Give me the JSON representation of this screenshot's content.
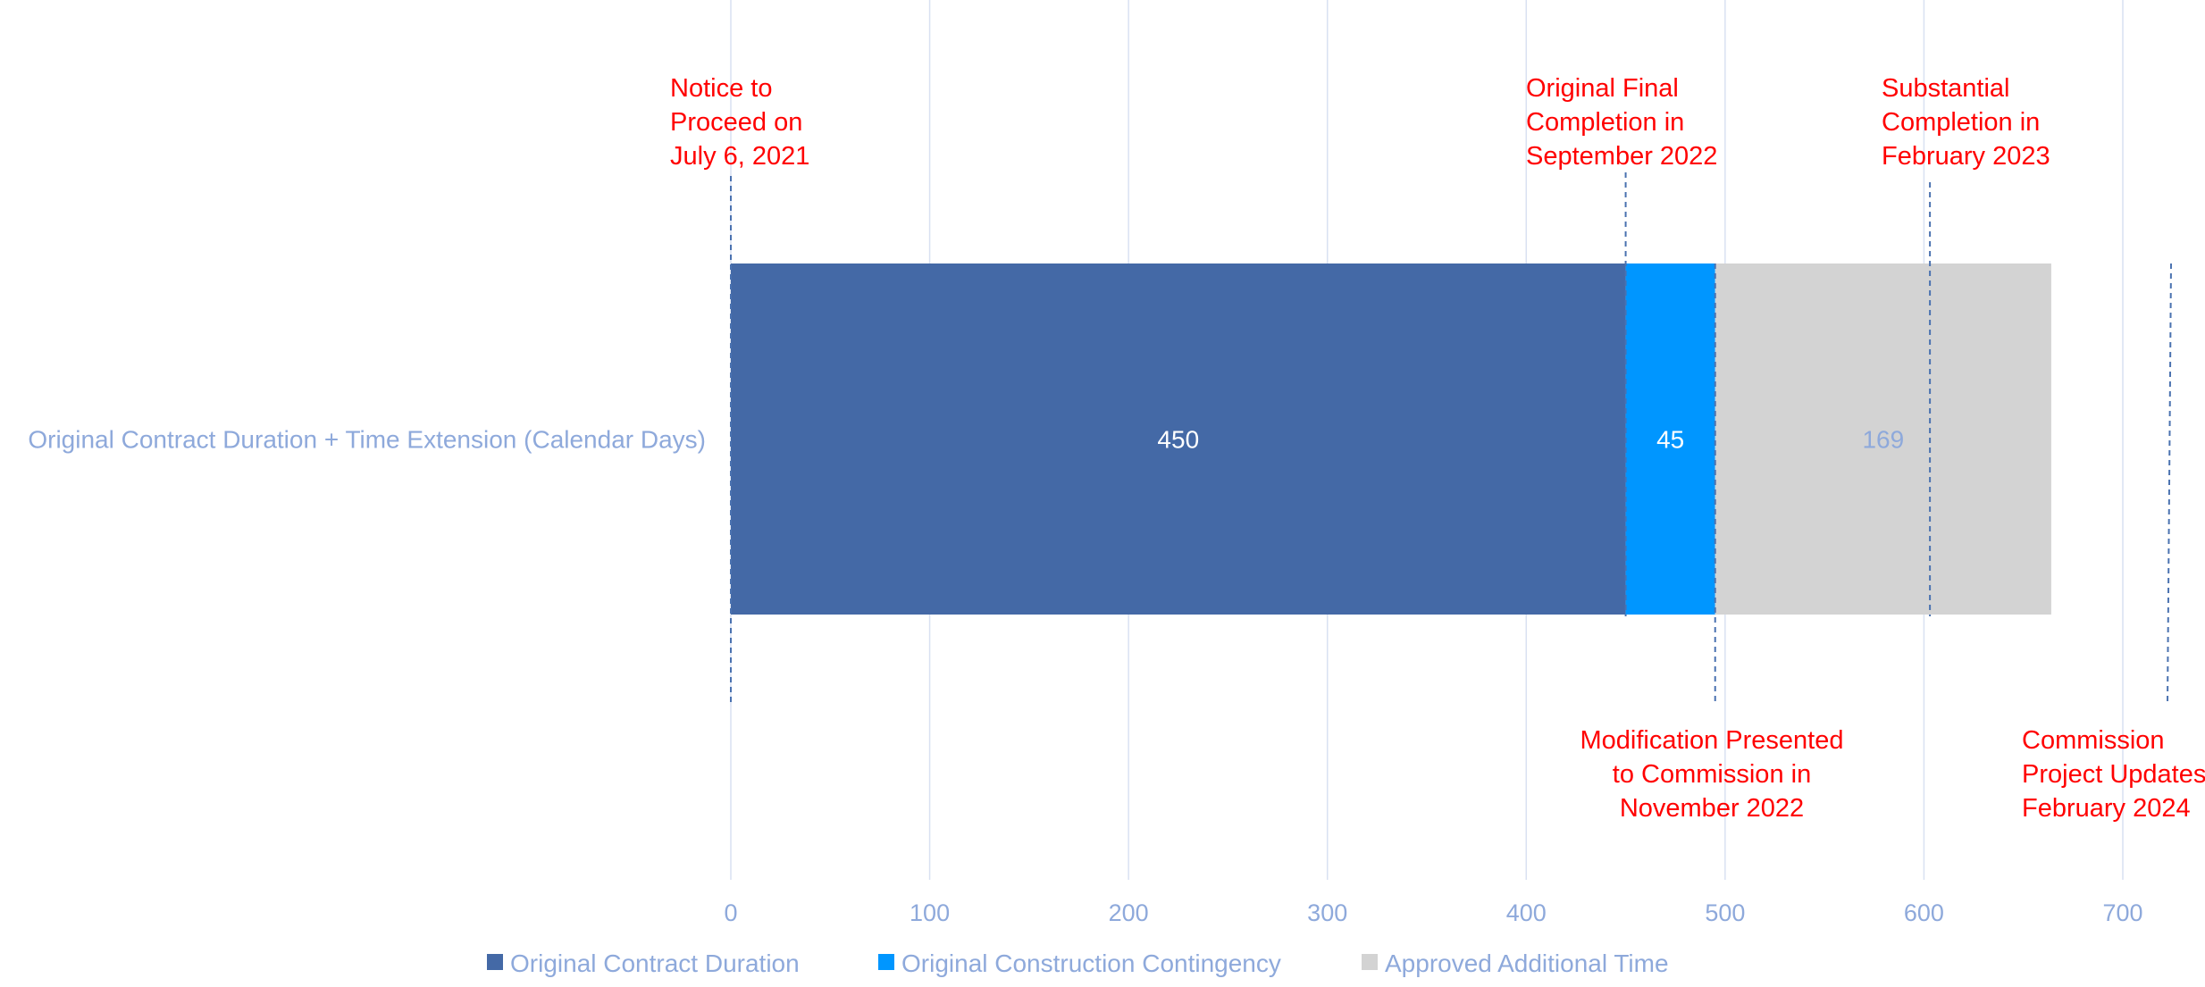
{
  "chart_data": {
    "type": "bar",
    "orientation": "horizontal",
    "stacked": true,
    "categories": [
      "Original Contract Duration + Time Extension (Calendar Days)"
    ],
    "series": [
      {
        "name": "Original Contract Duration",
        "values": [
          450
        ],
        "color": "#4469a6",
        "label_color": "#ffffff"
      },
      {
        "name": "Original Construction Contingency",
        "values": [
          45
        ],
        "color": "#0096ff",
        "label_color": "#ffffff"
      },
      {
        "name": "Approved Additional Time",
        "values": [
          169
        ],
        "color": "#d3d3d3",
        "label_color": "#8ea9db"
      }
    ],
    "xlim": [
      0,
      700
    ],
    "xticks": [
      0,
      100,
      200,
      300,
      400,
      500,
      600,
      700
    ],
    "grid": true,
    "legend": "bottom",
    "annotations": [
      {
        "x": 0,
        "position": "top",
        "lines": [
          "Notice to",
          "Proceed on",
          "July 6, 2021"
        ]
      },
      {
        "x": 450,
        "position": "top",
        "lines": [
          "Original Final",
          "Completion in",
          "September 2022"
        ]
      },
      {
        "x": 603,
        "position": "top",
        "lines": [
          "Substantial",
          "Completion in",
          "February 2023"
        ]
      },
      {
        "x": 495,
        "position": "bottom",
        "lines": [
          "Modification Presented",
          "to Commission in",
          "November 2022"
        ]
      },
      {
        "x": 725,
        "position": "bottom",
        "lines": [
          "Commission",
          "Project Updates",
          "February 2024"
        ]
      }
    ],
    "colors": {
      "annotation": "#ff0000",
      "axis_text": "#8ea9db",
      "grid": "#d9e1f2",
      "marker_line": "#4a72b0"
    }
  }
}
